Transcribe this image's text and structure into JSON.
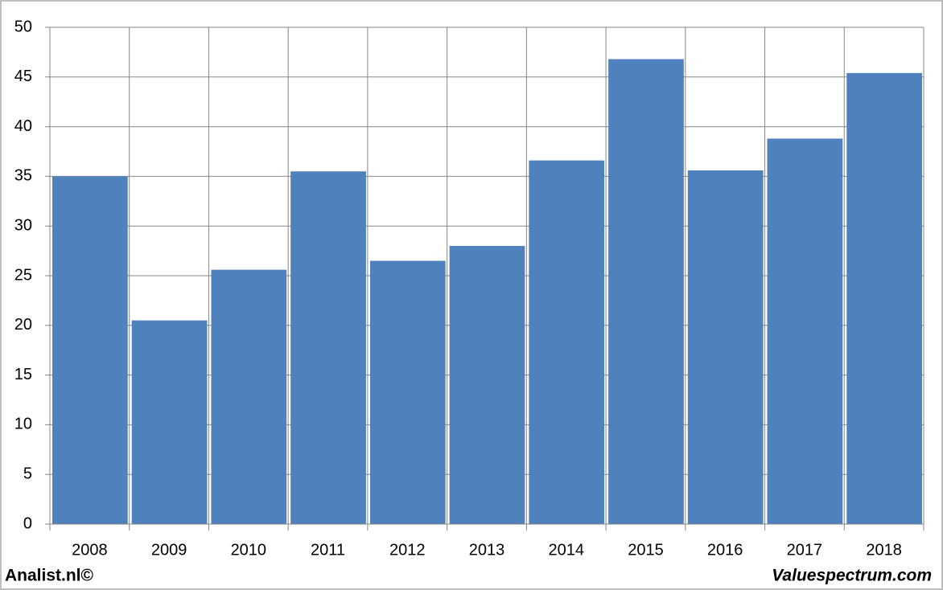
{
  "chart_data": {
    "type": "bar",
    "categories": [
      "2008",
      "2009",
      "2010",
      "2011",
      "2012",
      "2013",
      "2014",
      "2015",
      "2016",
      "2017",
      "2018"
    ],
    "values": [
      35,
      20.5,
      25.6,
      35.5,
      26.5,
      28,
      36.6,
      46.8,
      35.6,
      38.8,
      45.4
    ],
    "color": "#4f81bd",
    "ylim": [
      0,
      50
    ],
    "yticks": [
      0,
      5,
      10,
      15,
      20,
      25,
      30,
      35,
      40,
      45,
      50
    ],
    "grid": true,
    "annotations": [
      "Analist.nl©",
      "Valuespectrum.com"
    ]
  }
}
